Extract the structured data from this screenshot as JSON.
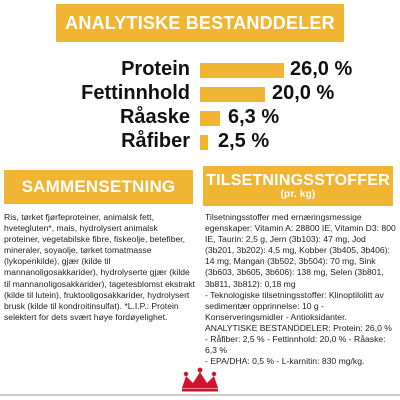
{
  "analytical": {
    "title": "ANALYTISKE BESTANDDELER",
    "rows": [
      {
        "label": "Protein",
        "value": "26,0 %",
        "level": 26.0
      },
      {
        "label": "Fettinnhold",
        "value": "20,0 %",
        "level": 20.0
      },
      {
        "label": "Råaske",
        "value": "6,3 %",
        "level": 6.3
      },
      {
        "label": "Råfiber",
        "value": "2,5 %",
        "level": 2.5
      }
    ]
  },
  "composition": {
    "title": "SAMMENSETNING",
    "text": "Ris, tørket fjørfeproteiner, animalsk fett, hvetegluten*, mais, hydrolysert animalsk proteiner, vegetabilske fibre, fiskeolje, betefiber, mineraler, soyaolje, tørket tomatmasse (lykopenkilde), gjær (kilde til mannanoligosakkarider), hydrolyserte gjær (kilde til mannanoligosakkarider), tagetesblomst ekstrakt (kilde til lutein), fruktooligosakkarider, hydrolysert brusk (kilde til kondroitinsulfat). *L.I.P.: Protein selektert for dets svært høye fordøyelighet."
  },
  "additives": {
    "title": "TILSETNINGSSTOFFER",
    "subtitle": "(pr. kg)",
    "lines": [
      "Tilsetningsstoffer med ernæringsmessige egenskaper: Vitamin A: 28800 IE, Vitamin D3: 800 IE, Taurin: 2,5 g, Jern (3b103): 47 mg, Jod (3b201, 3b202): 4,5 mg, Kobber (3b405, 3b406): 14 mg, Mangan (3b502, 3b504): 70 mg, Sink (3b603, 3b605, 3b606): 138 mg, Selen (3b801, 3b811, 3b812): 0,18 mg",
      "- Teknologiske tilsetningsstoffer: Klinoptilolitt av sedimentær opprinnelse: 10 g - Konserveringsmidler - Antioksidanter.",
      "ANALYTISKE BESTANDDELER: Protein: 26,0 %",
      "- Råfiber: 2,5 % - Fettinnhold: 20,0 % - Råaske: 6,3 %",
      "- EPA/DHA: 0,5 % - L-karnitin: 830 mg/kg."
    ]
  },
  "colors": {
    "accent": "#f0b533",
    "brand": "#d2122e"
  },
  "logo": {
    "icon": "royal-canin-crown-logo"
  }
}
